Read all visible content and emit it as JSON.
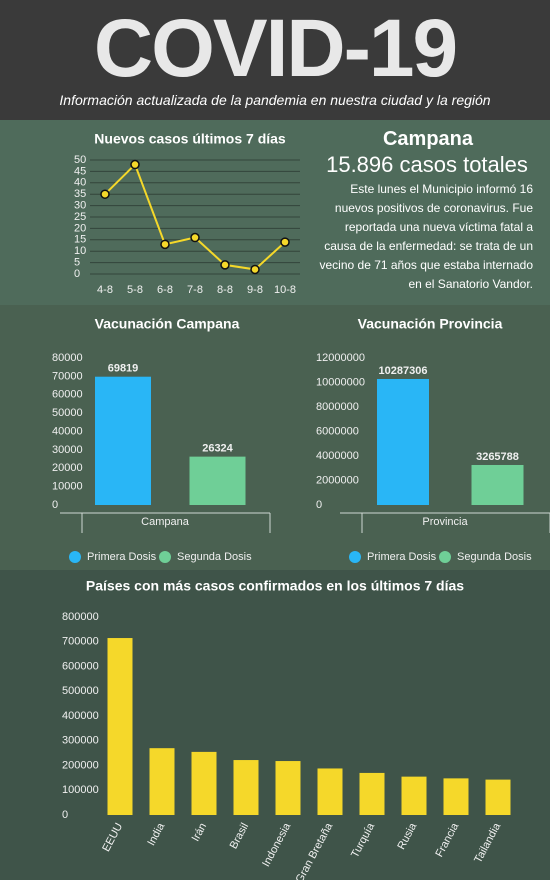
{
  "header": {
    "title": "COVID-19",
    "subtitle": "Información actualizada de la pandemia en nuestra ciudad y la región"
  },
  "campana": {
    "title": "Campana",
    "total": "15.896 casos totales",
    "text": "Este lunes el Municipio informó 16 nuevos positivos de coronavirus. Fue reportada una nueva víctima fatal a causa de la enfermedad: se trata de un vecino de 71 años que estaba internado en el Sanatorio Vandor."
  },
  "chart_data": [
    {
      "type": "line",
      "title": "Nuevos casos últimos 7 días",
      "categories": [
        "4-8",
        "5-8",
        "6-8",
        "7-8",
        "8-8",
        "9-8",
        "10-8"
      ],
      "values": [
        35,
        48,
        13,
        16,
        4,
        2,
        14
      ],
      "color": "#f5d82a",
      "ylim": [
        0,
        50
      ],
      "yticks": [
        0,
        5,
        10,
        15,
        20,
        25,
        30,
        35,
        40,
        45,
        50
      ],
      "grid": true
    },
    {
      "type": "bar",
      "title": "Vacunación Campana",
      "categories": [
        "Campana"
      ],
      "series": [
        {
          "name": "Primera Dosis",
          "color": "#29b6f6",
          "values": [
            69819
          ]
        },
        {
          "name": "Segunda Dosis",
          "color": "#6fcf97",
          "values": [
            26324
          ]
        }
      ],
      "ylim": [
        0,
        80000
      ],
      "yticks": [
        0,
        10000,
        20000,
        30000,
        40000,
        50000,
        60000,
        70000,
        80000
      ],
      "grid": false,
      "legend": "bottom"
    },
    {
      "type": "bar",
      "title": "Vacunación Provincia",
      "categories": [
        "Provincia"
      ],
      "series": [
        {
          "name": "Primera Dosis",
          "color": "#29b6f6",
          "values": [
            10287306
          ]
        },
        {
          "name": "Segunda Dosis",
          "color": "#6fcf97",
          "values": [
            3265788
          ]
        }
      ],
      "ylim": [
        0,
        12000000
      ],
      "yticks": [
        0,
        2000000,
        4000000,
        6000000,
        8000000,
        10000000,
        12000000
      ],
      "grid": false,
      "legend": "bottom"
    },
    {
      "type": "bar",
      "title": "Países con más casos confirmados en los últimos 7 días",
      "categories": [
        "EEUU",
        "India",
        "Irán",
        "Brasil",
        "Indonesia",
        "Gran Bretaña",
        "Turquía",
        "Rusia",
        "Francia",
        "Tailandia"
      ],
      "series": [
        {
          "color": "#f5d82a",
          "values": [
            715000,
            270000,
            255000,
            222000,
            218000,
            188000,
            170000,
            155000,
            148000,
            143000
          ]
        }
      ],
      "ylim": [
        0,
        800000
      ],
      "yticks": [
        0,
        100000,
        200000,
        300000,
        400000,
        500000,
        600000,
        700000,
        800000
      ],
      "grid": false
    }
  ]
}
